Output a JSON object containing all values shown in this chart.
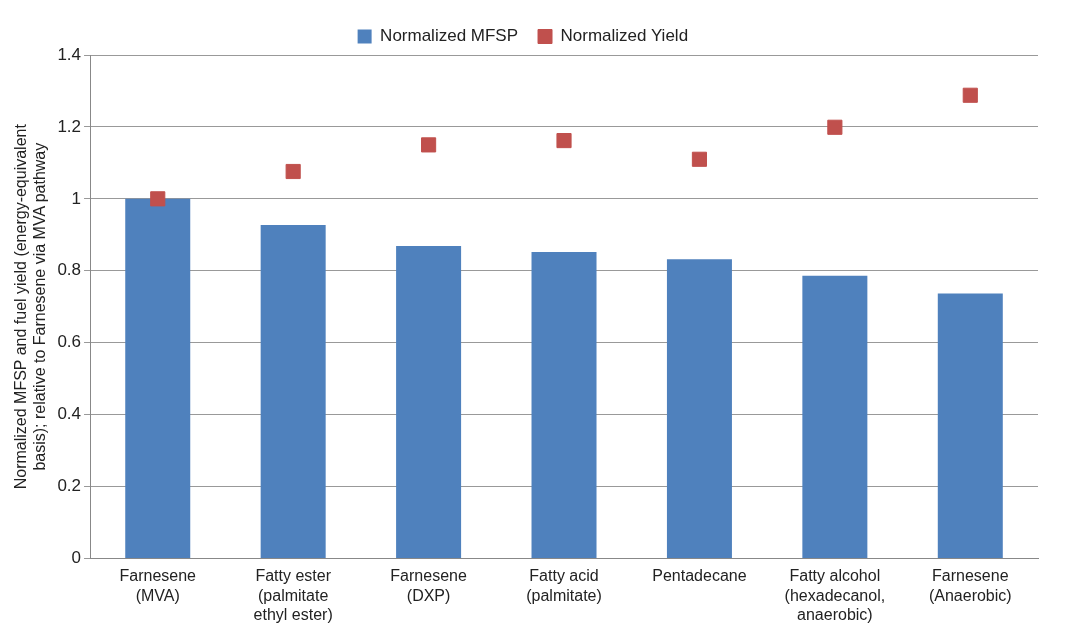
{
  "chart_data": {
    "type": "bar",
    "ylabel": "Normalized MFSP and fuel yield (energy-equivalent basis); relative to Farnesene via MVA pathway",
    "categories": [
      "Farnesene (MVA)",
      "Fatty ester (palmitate ethyl ester)",
      "Farnesene (DXP)",
      "Fatty acid (palmitate)",
      "Pentadecane",
      "Fatty alcohol (hexadecanol, anaerobic)",
      "Farnesene (Anaerobic)"
    ],
    "series": [
      {
        "name": "Normalized MFSP",
        "color": "#4f81bd",
        "values": [
          1.0,
          0.927,
          0.869,
          0.852,
          0.832,
          0.786,
          0.737
        ]
      },
      {
        "name": "Normalized Yield",
        "type": "scatter",
        "marker": "square",
        "color": "#c0504d",
        "values": [
          1.0,
          1.076,
          1.15,
          1.162,
          1.11,
          1.199,
          1.288
        ]
      }
    ],
    "ylim": [
      0,
      1.4
    ],
    "yticks": [
      0,
      0.2,
      0.4,
      0.6,
      0.8,
      1,
      1.2,
      1.4
    ],
    "grid": "y",
    "legend": "top"
  }
}
